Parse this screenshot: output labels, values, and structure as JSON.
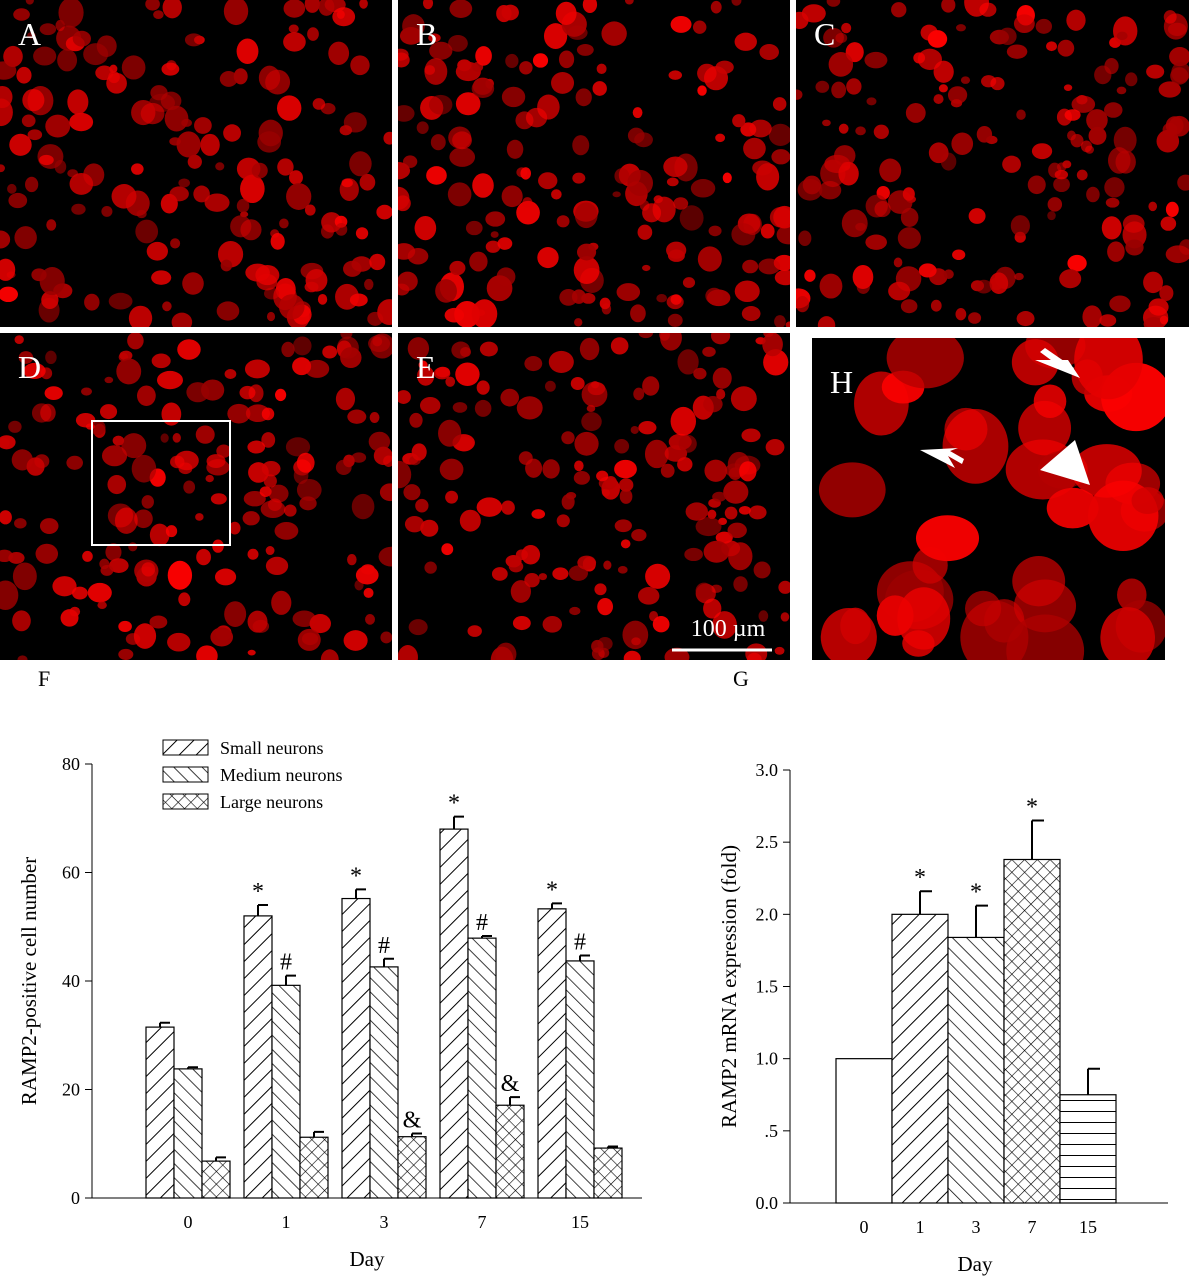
{
  "images": [
    {
      "label": "A"
    },
    {
      "label": "B"
    },
    {
      "label": "C"
    },
    {
      "label": "D"
    },
    {
      "label": "E"
    },
    {
      "label": "H"
    }
  ],
  "scale_bar": "100 µm",
  "chart_data": [
    {
      "type": "grouped-bar",
      "panel": "F",
      "x_label": "Day",
      "y_label": "RAMP2-positive cell number",
      "categories": [
        "0",
        "1",
        "3",
        "7",
        "15"
      ],
      "series": [
        {
          "name": "Small neurons",
          "color": "#000000",
          "pattern": "forward-diagonal",
          "values": [
            31.5,
            52,
            55.2,
            68,
            53.3
          ],
          "errors": [
            0.8,
            2,
            1.7,
            2.3,
            1
          ],
          "significance": [
            null,
            "*",
            "*",
            "*",
            "*"
          ]
        },
        {
          "name": "Medium neurons",
          "color": "#000000",
          "pattern": "backward-diagonal",
          "values": [
            23.8,
            39.2,
            42.6,
            47.9,
            43.7
          ],
          "errors": [
            0.3,
            1.8,
            1.5,
            0.4,
            1
          ],
          "significance": [
            null,
            "#",
            "#",
            "#",
            "#"
          ]
        },
        {
          "name": "Large neurons",
          "color": "#000000",
          "pattern": "cross",
          "values": [
            6.8,
            11.2,
            11.3,
            17.1,
            9.2
          ],
          "errors": [
            0.7,
            1,
            0.6,
            1.5,
            0.3
          ],
          "significance": [
            null,
            null,
            "&",
            "&",
            null
          ]
        }
      ],
      "ylim": [
        0,
        80
      ],
      "yticks": [
        0,
        20,
        40,
        60,
        80
      ],
      "legend": "upper-left"
    },
    {
      "type": "bar",
      "panel": "G",
      "x_label": "Day",
      "y_label": "RAMP2 mRNA expression (fold)",
      "categories": [
        "0",
        "1",
        "3",
        "7",
        "15"
      ],
      "color": "#000000",
      "patterns": [
        "none",
        "forward-diagonal",
        "backward-diagonal",
        "cross",
        "horizontal"
      ],
      "values": [
        1.0,
        2.0,
        1.84,
        2.38,
        0.75
      ],
      "errors": [
        null,
        0.16,
        0.22,
        0.27,
        0.18
      ],
      "significance": [
        null,
        "*",
        "*",
        "*",
        null
      ],
      "ylim": [
        0,
        3
      ],
      "yticks": [
        {
          "value": 0,
          "label": "0.0"
        },
        {
          "value": 0.5,
          "label": ".5"
        },
        {
          "value": 1,
          "label": "1.0"
        },
        {
          "value": 1.5,
          "label": "1.5"
        },
        {
          "value": 2,
          "label": "2.0"
        },
        {
          "value": 2.5,
          "label": "2.5"
        },
        {
          "value": 3,
          "label": "3.0"
        }
      ]
    }
  ]
}
